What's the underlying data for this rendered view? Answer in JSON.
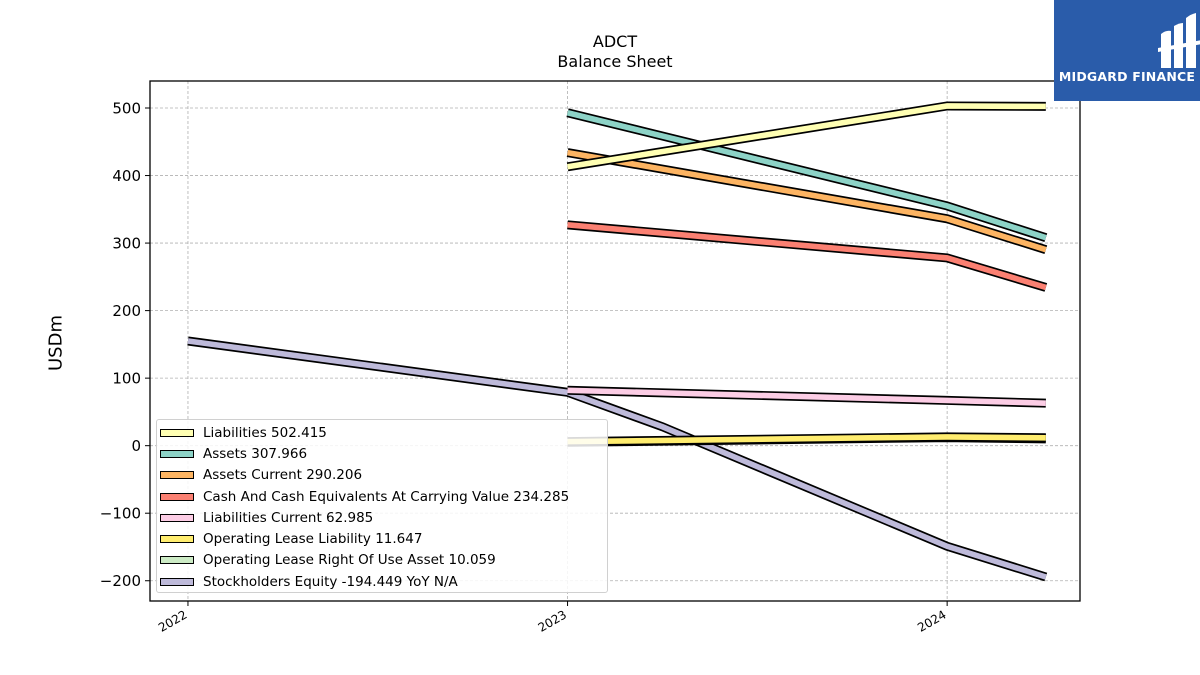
{
  "chart_data": {
    "type": "line",
    "title": "ADCT",
    "subtitle": "Balance  Sheet",
    "ylabel": "USDm",
    "xlabel": "",
    "ylim": [
      -230,
      540
    ],
    "xlim": [
      2021.9,
      2024.35
    ],
    "yticks": [
      500,
      400,
      300,
      200,
      100,
      0,
      -100,
      -200
    ],
    "ytick_labels": [
      "500",
      "400",
      "300",
      "200",
      "100",
      "0",
      "−100",
      "−200"
    ],
    "xticks": [
      2022,
      2023,
      2024
    ],
    "xtick_labels": [
      "2022",
      "2023",
      "2024"
    ],
    "grid": true,
    "legend_position": "lower-left",
    "series": [
      {
        "name": "Liabilities",
        "legend": "Liabilities  502.415",
        "color": "#ffffb3",
        "x": [
          2023,
          2024,
          2024.26
        ],
        "y": [
          413,
          503,
          502.415
        ]
      },
      {
        "name": "Assets",
        "legend": "Assets  307.966",
        "color": "#8dd3c7",
        "x": [
          2023,
          2024,
          2024.26
        ],
        "y": [
          493,
          355,
          307.966
        ]
      },
      {
        "name": "Assets Current",
        "legend": "Assets Current  290.206",
        "color": "#fdb462",
        "x": [
          2023,
          2024,
          2024.26
        ],
        "y": [
          434,
          336,
          290.206
        ]
      },
      {
        "name": "Cash And Cash Equivalents At Carrying Value",
        "legend": "Cash And Cash Equivalents At Carrying Value  234.285",
        "color": "#fb8072",
        "x": [
          2023,
          2024,
          2024.26
        ],
        "y": [
          327,
          278,
          234.285
        ]
      },
      {
        "name": "Liabilities Current",
        "legend": "Liabilities Current  62.985",
        "color": "#fccde5",
        "x": [
          2023,
          2024,
          2024.26
        ],
        "y": [
          82,
          67,
          62.985
        ]
      },
      {
        "name": "Operating Lease Liability",
        "legend": "Operating Lease Liability  11.647",
        "color": "#ffed6f",
        "x": [
          2023,
          2024,
          2024.26
        ],
        "y": [
          6,
          13,
          11.647
        ]
      },
      {
        "name": "Operating Lease Right Of Use Asset",
        "legend": "Operating Lease Right Of Use Asset  10.059",
        "color": "#ccebc5",
        "x": [
          2023,
          2024,
          2024.26
        ],
        "y": [
          5,
          12,
          10.059
        ]
      },
      {
        "name": "Stockholders Equity",
        "legend": "Stockholders Equity  -194.449 YoY N/A",
        "color": "#bebada",
        "x": [
          2022,
          2023,
          2023.25,
          2024,
          2024.26
        ],
        "y": [
          155,
          79,
          28,
          -149,
          -194.449
        ]
      }
    ]
  },
  "logo": {
    "text": "MIDGARD FINANCE"
  }
}
